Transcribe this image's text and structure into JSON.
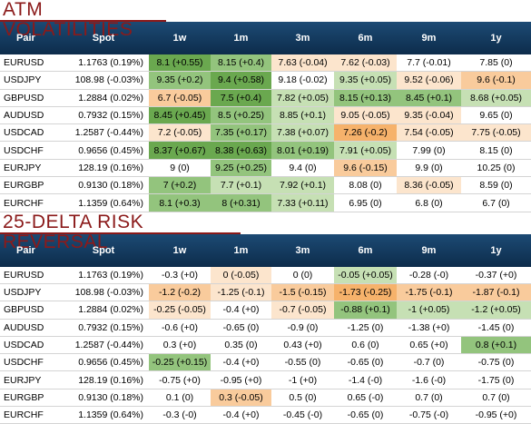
{
  "colors": {
    "title": "#8b1a1a",
    "header_bg": "#14395e",
    "green_dark": "#6aa84f",
    "green": "#93c47d",
    "green_light": "#c6e0b4",
    "orange": "#f6b26b",
    "orange_light": "#f9cb9c",
    "orange_pale": "#fce5cd"
  },
  "atm": {
    "title": "ATM VOLATILITIES",
    "headers": [
      "Pair",
      "Spot",
      "1w",
      "1m",
      "3m",
      "6m",
      "9m",
      "1y"
    ],
    "rows": [
      {
        "pair": "EURUSD",
        "spot": "1.1763 (0.19%)",
        "cells": [
          {
            "v": "8.1 (+0.55)",
            "c": "gd"
          },
          {
            "v": "8.15 (+0.4)",
            "c": "g"
          },
          {
            "v": "7.63 (-0.04)",
            "c": "ox"
          },
          {
            "v": "7.62 (-0.03)",
            "c": "ox"
          },
          {
            "v": "7.7 (-0.01)",
            "c": ""
          },
          {
            "v": "7.85 (0)",
            "c": ""
          }
        ]
      },
      {
        "pair": "USDJPY",
        "spot": "108.98 (-0.03%)",
        "cells": [
          {
            "v": "9.35 (+0.2)",
            "c": "g"
          },
          {
            "v": "9.4 (+0.58)",
            "c": "gd"
          },
          {
            "v": "9.18 (-0.02)",
            "c": ""
          },
          {
            "v": "9.35 (+0.05)",
            "c": "gl"
          },
          {
            "v": "9.52 (-0.06)",
            "c": "ox"
          },
          {
            "v": "9.6 (-0.1)",
            "c": "ol"
          }
        ]
      },
      {
        "pair": "GBPUSD",
        "spot": "1.2884 (0.02%)",
        "cells": [
          {
            "v": "6.7 (-0.05)",
            "c": "ol"
          },
          {
            "v": "7.5 (+0.4)",
            "c": "gd"
          },
          {
            "v": "7.82 (+0.05)",
            "c": "gl"
          },
          {
            "v": "8.15 (+0.13)",
            "c": "g"
          },
          {
            "v": "8.45 (+0.1)",
            "c": "g"
          },
          {
            "v": "8.68 (+0.05)",
            "c": "gl"
          }
        ]
      },
      {
        "pair": "AUDUSD",
        "spot": "0.7932 (0.15%)",
        "cells": [
          {
            "v": "8.45 (+0.45)",
            "c": "gd"
          },
          {
            "v": "8.5 (+0.25)",
            "c": "g"
          },
          {
            "v": "8.85 (+0.1)",
            "c": "gl"
          },
          {
            "v": "9.05 (-0.05)",
            "c": "ox"
          },
          {
            "v": "9.35 (-0.04)",
            "c": "ox"
          },
          {
            "v": "9.65 (0)",
            "c": ""
          }
        ]
      },
      {
        "pair": "USDCAD",
        "spot": "1.2587 (-0.44%)",
        "cells": [
          {
            "v": "7.2 (-0.05)",
            "c": "ox"
          },
          {
            "v": "7.35 (+0.17)",
            "c": "g"
          },
          {
            "v": "7.38 (+0.07)",
            "c": "gl"
          },
          {
            "v": "7.26 (-0.2)",
            "c": "or"
          },
          {
            "v": "7.54 (-0.05)",
            "c": "ox"
          },
          {
            "v": "7.75 (-0.05)",
            "c": "ox"
          }
        ]
      },
      {
        "pair": "USDCHF",
        "spot": "0.9656 (0.45%)",
        "cells": [
          {
            "v": "8.37 (+0.67)",
            "c": "gd"
          },
          {
            "v": "8.38 (+0.63)",
            "c": "gd"
          },
          {
            "v": "8.01 (+0.19)",
            "c": "g"
          },
          {
            "v": "7.91 (+0.05)",
            "c": "gl"
          },
          {
            "v": "7.99 (0)",
            "c": ""
          },
          {
            "v": "8.15 (0)",
            "c": ""
          }
        ]
      },
      {
        "pair": "EURJPY",
        "spot": "128.19 (0.16%)",
        "cells": [
          {
            "v": "9 (0)",
            "c": ""
          },
          {
            "v": "9.25 (+0.25)",
            "c": "g"
          },
          {
            "v": "9.4 (0)",
            "c": ""
          },
          {
            "v": "9.6 (-0.15)",
            "c": "ol"
          },
          {
            "v": "9.9 (0)",
            "c": ""
          },
          {
            "v": "10.25 (0)",
            "c": ""
          }
        ]
      },
      {
        "pair": "EURGBP",
        "spot": "0.9130 (0.18%)",
        "cells": [
          {
            "v": "7 (+0.2)",
            "c": "g"
          },
          {
            "v": "7.7 (+0.1)",
            "c": "gl"
          },
          {
            "v": "7.92 (+0.1)",
            "c": "gl"
          },
          {
            "v": "8.08 (0)",
            "c": ""
          },
          {
            "v": "8.36 (-0.05)",
            "c": "ox"
          },
          {
            "v": "8.59 (0)",
            "c": ""
          }
        ]
      },
      {
        "pair": "EURCHF",
        "spot": "1.1359 (0.64%)",
        "cells": [
          {
            "v": "8.1 (+0.3)",
            "c": "g"
          },
          {
            "v": "8 (+0.31)",
            "c": "g"
          },
          {
            "v": "7.33 (+0.11)",
            "c": "gl"
          },
          {
            "v": "6.95 (0)",
            "c": ""
          },
          {
            "v": "6.8 (0)",
            "c": ""
          },
          {
            "v": "6.7 (0)",
            "c": ""
          }
        ]
      }
    ]
  },
  "rr": {
    "title": "25-DELTA RISK REVERSAL",
    "headers": [
      "Pair",
      "Spot",
      "1w",
      "1m",
      "3m",
      "6m",
      "9m",
      "1y"
    ],
    "rows": [
      {
        "pair": "EURUSD",
        "spot": "1.1763 (0.19%)",
        "cells": [
          {
            "v": "-0.3 (+0)",
            "c": ""
          },
          {
            "v": "0 (-0.05)",
            "c": "ox"
          },
          {
            "v": "0 (0)",
            "c": ""
          },
          {
            "v": "-0.05 (+0.05)",
            "c": "gl"
          },
          {
            "v": "-0.28 (-0)",
            "c": ""
          },
          {
            "v": "-0.37 (+0)",
            "c": ""
          }
        ]
      },
      {
        "pair": "USDJPY",
        "spot": "108.98 (-0.03%)",
        "cells": [
          {
            "v": "-1.2 (-0.2)",
            "c": "ol"
          },
          {
            "v": "-1.25 (-0.1)",
            "c": "ox"
          },
          {
            "v": "-1.5 (-0.15)",
            "c": "ol"
          },
          {
            "v": "-1.73 (-0.25)",
            "c": "or"
          },
          {
            "v": "-1.75 (-0.1)",
            "c": "ol"
          },
          {
            "v": "-1.87 (-0.1)",
            "c": "ol"
          }
        ]
      },
      {
        "pair": "GBPUSD",
        "spot": "1.2884 (0.02%)",
        "cells": [
          {
            "v": "-0.25 (-0.05)",
            "c": "ox"
          },
          {
            "v": "-0.4 (+0)",
            "c": ""
          },
          {
            "v": "-0.7 (-0.05)",
            "c": "ox"
          },
          {
            "v": "-0.88 (+0.1)",
            "c": "g"
          },
          {
            "v": "-1 (+0.05)",
            "c": "gl"
          },
          {
            "v": "-1.2 (+0.05)",
            "c": "gl"
          }
        ]
      },
      {
        "pair": "AUDUSD",
        "spot": "0.7932 (0.15%)",
        "cells": [
          {
            "v": "-0.6 (+0)",
            "c": ""
          },
          {
            "v": "-0.65 (0)",
            "c": ""
          },
          {
            "v": "-0.9 (0)",
            "c": ""
          },
          {
            "v": "-1.25 (0)",
            "c": ""
          },
          {
            "v": "-1.38 (+0)",
            "c": ""
          },
          {
            "v": "-1.45 (0)",
            "c": ""
          }
        ]
      },
      {
        "pair": "USDCAD",
        "spot": "1.2587 (-0.44%)",
        "cells": [
          {
            "v": "0.3 (+0)",
            "c": ""
          },
          {
            "v": "0.35 (0)",
            "c": ""
          },
          {
            "v": "0.43 (+0)",
            "c": ""
          },
          {
            "v": "0.6 (0)",
            "c": ""
          },
          {
            "v": "0.65 (+0)",
            "c": ""
          },
          {
            "v": "0.8 (+0.1)",
            "c": "g"
          }
        ]
      },
      {
        "pair": "USDCHF",
        "spot": "0.9656 (0.45%)",
        "cells": [
          {
            "v": "-0.25 (+0.15)",
            "c": "g"
          },
          {
            "v": "-0.4 (+0)",
            "c": ""
          },
          {
            "v": "-0.55 (0)",
            "c": ""
          },
          {
            "v": "-0.65 (0)",
            "c": ""
          },
          {
            "v": "-0.7 (0)",
            "c": ""
          },
          {
            "v": "-0.75 (0)",
            "c": ""
          }
        ]
      },
      {
        "pair": "EURJPY",
        "spot": "128.19 (0.16%)",
        "cells": [
          {
            "v": "-0.75 (+0)",
            "c": ""
          },
          {
            "v": "-0.95 (+0)",
            "c": ""
          },
          {
            "v": "-1 (+0)",
            "c": ""
          },
          {
            "v": "-1.4 (-0)",
            "c": ""
          },
          {
            "v": "-1.6 (-0)",
            "c": ""
          },
          {
            "v": "-1.75 (0)",
            "c": ""
          }
        ]
      },
      {
        "pair": "EURGBP",
        "spot": "0.9130 (0.18%)",
        "cells": [
          {
            "v": "0.1 (0)",
            "c": ""
          },
          {
            "v": "0.3 (-0.05)",
            "c": "ol"
          },
          {
            "v": "0.5 (0)",
            "c": ""
          },
          {
            "v": "0.65 (-0)",
            "c": ""
          },
          {
            "v": "0.7 (0)",
            "c": ""
          },
          {
            "v": "0.7 (0)",
            "c": ""
          }
        ]
      },
      {
        "pair": "EURCHF",
        "spot": "1.1359 (0.64%)",
        "cells": [
          {
            "v": "-0.3 (-0)",
            "c": ""
          },
          {
            "v": "-0.4 (+0)",
            "c": ""
          },
          {
            "v": "-0.45 (-0)",
            "c": ""
          },
          {
            "v": "-0.65 (0)",
            "c": ""
          },
          {
            "v": "-0.75 (-0)",
            "c": ""
          },
          {
            "v": "-0.95 (+0)",
            "c": ""
          }
        ]
      }
    ]
  }
}
